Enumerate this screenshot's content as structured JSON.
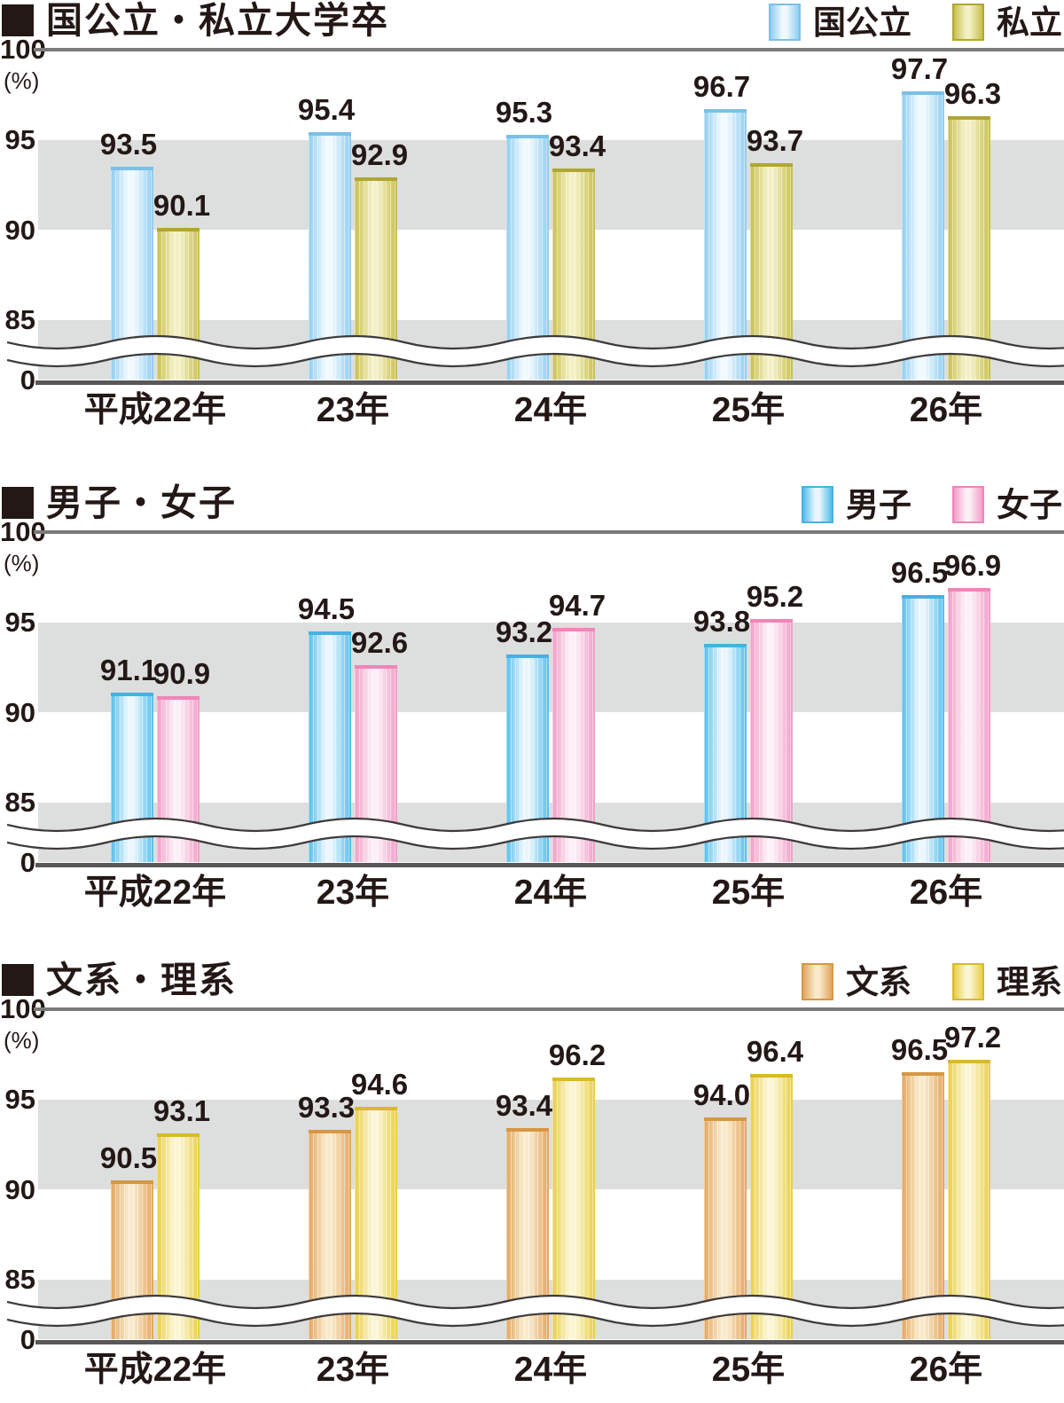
{
  "unit_label": "(%)",
  "y_ticks": [
    "100",
    "95",
    "90",
    "85",
    "0"
  ],
  "chart_data": [
    {
      "type": "bar",
      "title": "国公立・私立大学卒",
      "unit": "%",
      "ylim": [
        0,
        100
      ],
      "axis_break": "wavy break between 0 and 85",
      "gray_bands": [
        [
          90,
          95
        ],
        [
          0,
          85
        ]
      ],
      "legend_position": "top-right",
      "y_ticks": [
        "100",
        "95",
        "90",
        "85",
        "0"
      ],
      "categories": [
        "平成22年",
        "23年",
        "24年",
        "25年",
        "26年"
      ],
      "series": [
        {
          "name": "国公立",
          "values": [
            93.5,
            95.4,
            95.3,
            96.7,
            97.7
          ],
          "colors": {
            "edge": "#8FCDF0",
            "light": "#F0F9FE",
            "cap": "#7AC0E8"
          }
        },
        {
          "name": "私立",
          "values": [
            90.1,
            92.9,
            93.4,
            93.7,
            96.3
          ],
          "colors": {
            "edge": "#C8BF4C",
            "light": "#F3F0C4",
            "cap": "#AFA636"
          }
        }
      ]
    },
    {
      "type": "bar",
      "title": "男子・女子",
      "unit": "%",
      "ylim": [
        0,
        100
      ],
      "axis_break": "wavy break between 0 and 85",
      "gray_bands": [
        [
          90,
          95
        ],
        [
          0,
          85
        ]
      ],
      "legend_position": "top-right",
      "y_ticks": [
        "100",
        "95",
        "90",
        "85",
        "0"
      ],
      "categories": [
        "平成22年",
        "23年",
        "24年",
        "25年",
        "26年"
      ],
      "series": [
        {
          "name": "男子",
          "values": [
            91.1,
            94.5,
            93.2,
            93.8,
            96.5
          ],
          "colors": {
            "edge": "#55BEEC",
            "light": "#EAF6FD",
            "cap": "#45B2E2"
          }
        },
        {
          "name": "女子",
          "values": [
            90.9,
            92.6,
            94.7,
            95.2,
            96.9
          ],
          "colors": {
            "edge": "#F29CC6",
            "light": "#FCEFF6",
            "cap": "#EE86B8"
          }
        }
      ]
    },
    {
      "type": "bar",
      "title": "文系・理系",
      "unit": "%",
      "ylim": [
        0,
        100
      ],
      "axis_break": "wavy break between 0 and 85",
      "gray_bands": [
        [
          90,
          95
        ],
        [
          0,
          85
        ]
      ],
      "legend_position": "top-right",
      "y_ticks": [
        "100",
        "95",
        "90",
        "85",
        "0"
      ],
      "categories": [
        "平成22年",
        "23年",
        "24年",
        "25年",
        "26年"
      ],
      "series": [
        {
          "name": "文系",
          "values": [
            90.5,
            93.3,
            93.4,
            94.0,
            96.5
          ],
          "colors": {
            "edge": "#E4A55E",
            "light": "#F8EACA",
            "cap": "#D79743"
          }
        },
        {
          "name": "理系",
          "values": [
            93.1,
            94.6,
            96.2,
            96.4,
            97.2
          ],
          "colors": {
            "edge": "#E8CE45",
            "light": "#FBF5D3",
            "cap": "#D8B930"
          }
        }
      ]
    }
  ],
  "style_colors": {
    "text": "#231815",
    "gray_band": "#DDDEDE",
    "top_line": "#7A7A7A",
    "axis_line": "#595757",
    "wave_stroke": "#3E3A39"
  }
}
